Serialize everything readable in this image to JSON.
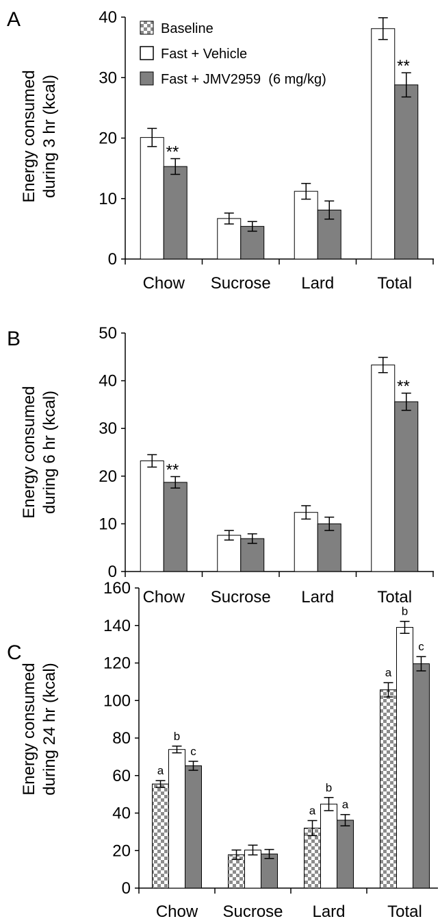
{
  "legend": {
    "baseline": "Baseline",
    "vehicle": "Fast + Vehicle",
    "jmv": "Fast + JMV2959  (6 mg/kg)"
  },
  "colors": {
    "baseline_light": "#ffffff",
    "baseline_dark": "#8c8c8c",
    "vehicle": "#ffffff",
    "jmv": "#808080",
    "axis": "#000000"
  },
  "chart_data": [
    {
      "type": "bar",
      "panel": "A",
      "ylabel_line1": "Energy consumed",
      "ylabel_line2": "during 3 hr (kcal)",
      "categories": [
        "Chow",
        "Sucrose",
        "Lard",
        "Total"
      ],
      "ylim": [
        0,
        40
      ],
      "yticks": [
        0,
        10,
        20,
        30,
        40
      ],
      "series": [
        {
          "name": "Fast + Vehicle",
          "key": "vehicle",
          "values": [
            20.1,
            6.7,
            11.2,
            38.1
          ],
          "errors": [
            1.5,
            0.9,
            1.3,
            1.8
          ]
        },
        {
          "name": "Fast + JMV2959  (6 mg/kg)",
          "key": "jmv",
          "values": [
            15.3,
            5.4,
            8.1,
            28.8
          ],
          "errors": [
            1.3,
            0.8,
            1.5,
            2.0
          ]
        }
      ],
      "annotations": [
        {
          "category": 0,
          "series": 1,
          "text": "**"
        },
        {
          "category": 3,
          "series": 1,
          "text": "**"
        }
      ]
    },
    {
      "type": "bar",
      "panel": "B",
      "ylabel_line1": "Energy consumed",
      "ylabel_line2": "during 6 hr (kcal)",
      "categories": [
        "Chow",
        "Sucrose",
        "Lard",
        "Total"
      ],
      "ylim": [
        0,
        50
      ],
      "yticks": [
        0,
        10,
        20,
        30,
        40,
        50
      ],
      "series": [
        {
          "name": "Fast + Vehicle",
          "key": "vehicle",
          "values": [
            23.2,
            7.6,
            12.4,
            43.3
          ],
          "errors": [
            1.3,
            1.0,
            1.4,
            1.6
          ]
        },
        {
          "name": "Fast + JMV2959  (6 mg/kg)",
          "key": "jmv",
          "values": [
            18.7,
            6.9,
            10.0,
            35.6
          ],
          "errors": [
            1.2,
            1.0,
            1.4,
            1.8
          ]
        }
      ],
      "annotations": [
        {
          "category": 0,
          "series": 1,
          "text": "**"
        },
        {
          "category": 3,
          "series": 1,
          "text": "**"
        }
      ]
    },
    {
      "type": "bar",
      "panel": "C",
      "ylabel_line1": "Energy consumed",
      "ylabel_line2": "during 24 hr (kcal)",
      "categories": [
        "Chow",
        "Sucrose",
        "Lard",
        "Total"
      ],
      "ylim": [
        0,
        160
      ],
      "yticks": [
        0,
        20,
        40,
        60,
        80,
        100,
        120,
        140,
        160
      ],
      "series": [
        {
          "name": "Baseline",
          "key": "baseline",
          "values": [
            55.5,
            17.8,
            32.0,
            105.7
          ],
          "errors": [
            1.8,
            2.5,
            4.0,
            3.8
          ]
        },
        {
          "name": "Fast + Vehicle",
          "key": "vehicle",
          "values": [
            73.9,
            20.3,
            44.8,
            139.0
          ],
          "errors": [
            1.8,
            2.6,
            3.5,
            3.2
          ]
        },
        {
          "name": "Fast + JMV2959  (6 mg/kg)",
          "key": "jmv",
          "values": [
            65.2,
            18.2,
            36.2,
            119.6
          ],
          "errors": [
            2.4,
            2.4,
            3.0,
            3.8
          ]
        }
      ],
      "annotations": [
        {
          "category": 0,
          "series": 0,
          "text": "a"
        },
        {
          "category": 0,
          "series": 1,
          "text": "b"
        },
        {
          "category": 0,
          "series": 2,
          "text": "c"
        },
        {
          "category": 2,
          "series": 0,
          "text": "a"
        },
        {
          "category": 2,
          "series": 1,
          "text": "b"
        },
        {
          "category": 2,
          "series": 2,
          "text": "a"
        },
        {
          "category": 3,
          "series": 0,
          "text": "a"
        },
        {
          "category": 3,
          "series": 1,
          "text": "b"
        },
        {
          "category": 3,
          "series": 2,
          "text": "c"
        }
      ]
    }
  ]
}
